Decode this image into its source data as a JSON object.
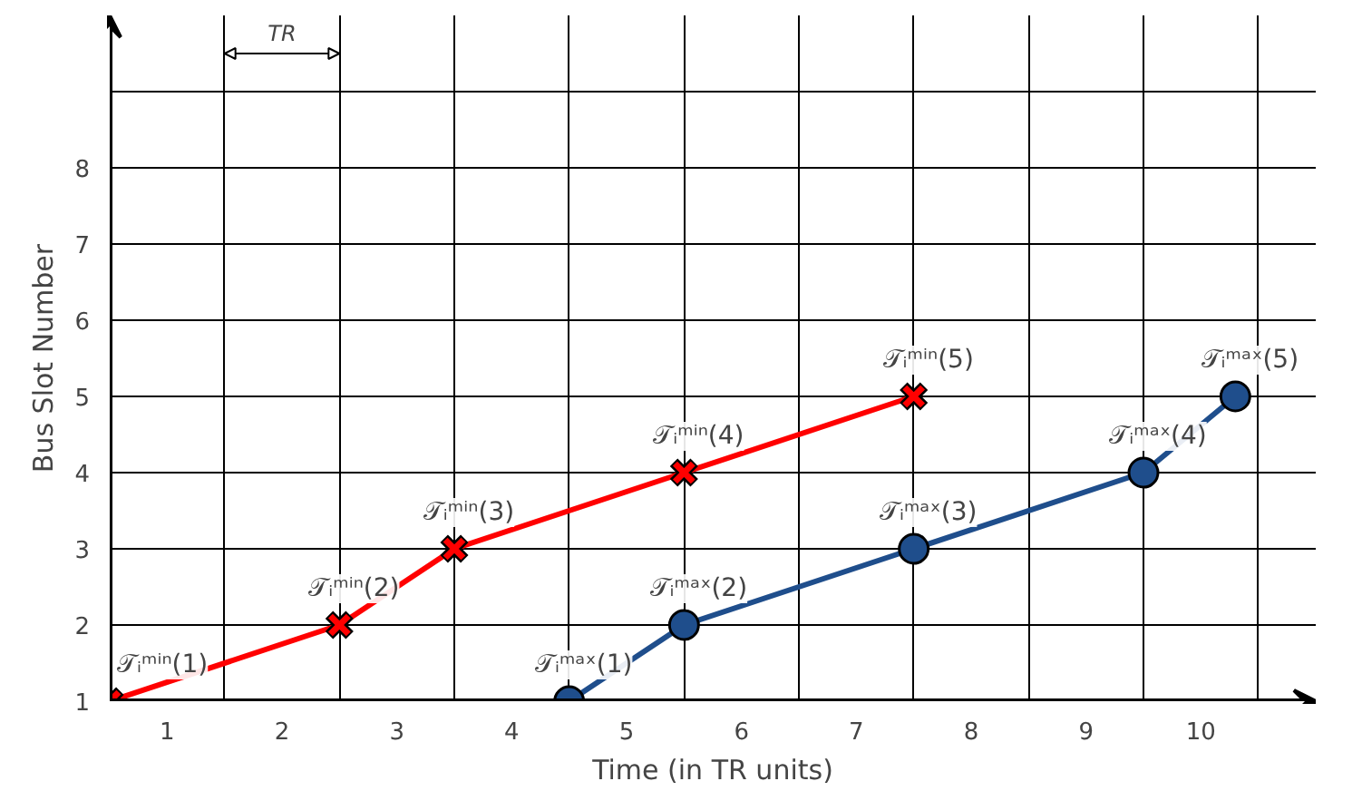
{
  "chart_data": {
    "type": "line",
    "xlabel": "Time (in TR units)",
    "ylabel": "Bus Slot Number",
    "xlim": [
      0.5,
      11
    ],
    "ylim": [
      1,
      10
    ],
    "xticks": [
      1,
      2,
      3,
      4,
      5,
      6,
      7,
      8,
      9,
      10
    ],
    "yticks": [
      1,
      2,
      3,
      4,
      5,
      6,
      7,
      8,
      {
        "value": 9,
        "label": null
      }
    ],
    "grid": true,
    "series": [
      {
        "color": "#ff0000",
        "marker": "cross",
        "x": [
          0.5,
          2.5,
          3.5,
          5.5,
          7.5
        ],
        "values": [
          1,
          2,
          3,
          4,
          5
        ]
      },
      {
        "color": "#1f4e8c",
        "marker": "circle",
        "x": [
          4.5,
          5.5,
          7.5,
          9.5,
          10.3
        ],
        "values": [
          1,
          2,
          3,
          4,
          5
        ]
      }
    ],
    "annotations": [
      {
        "text": "𝒯ᵢᵐⁱⁿ(1)",
        "x": 0.5,
        "y": 1
      },
      {
        "text": "𝒯ᵢᵐⁱⁿ(2)",
        "x": 2.5,
        "y": 2
      },
      {
        "text": "𝒯ᵢᵐⁱⁿ(3)",
        "x": 3.5,
        "y": 3
      },
      {
        "text": "𝒯ᵢᵐⁱⁿ(4)",
        "x": 5.5,
        "y": 4
      },
      {
        "text": "𝒯ᵢᵐⁱⁿ(5)",
        "x": 7.5,
        "y": 5
      },
      {
        "text": "𝒯ᵢᵐᵃˣ(1)",
        "x": 4.5,
        "y": 1
      },
      {
        "text": "𝒯ᵢᵐᵃˣ(2)",
        "x": 5.5,
        "y": 2
      },
      {
        "text": "𝒯ᵢᵐᵃˣ(3)",
        "x": 7.5,
        "y": 3
      },
      {
        "text": "𝒯ᵢᵐᵃˣ(4)",
        "x": 9.5,
        "y": 4
      },
      {
        "text": "𝒯ᵢᵐᵃˣ(5)",
        "x": 10.3,
        "y": 5
      },
      "TR"
    ]
  }
}
